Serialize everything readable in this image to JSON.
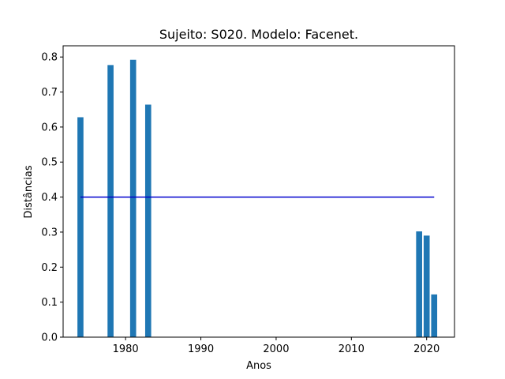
{
  "chart_data": {
    "type": "bar",
    "title": "Sujeito: S020. Modelo: Facenet.",
    "xlabel": "Anos",
    "ylabel": "Distâncias",
    "x": [
      1974,
      1978,
      1981,
      1983,
      2019,
      2020,
      2021
    ],
    "values": [
      0.628,
      0.777,
      0.792,
      0.664,
      0.302,
      0.29,
      0.122
    ],
    "bar_color": "#1f77b4",
    "threshold": {
      "value": 0.4,
      "x_range": [
        1974,
        2021
      ],
      "color": "#0000cd"
    },
    "xlim": [
      1971.7,
      2023.7
    ],
    "ylim": [
      0,
      0.832
    ],
    "xticks": [
      1980,
      1990,
      2000,
      2010,
      2020
    ],
    "yticks": [
      0.0,
      0.1,
      0.2,
      0.3,
      0.4,
      0.5,
      0.6,
      0.7,
      0.8
    ],
    "ytick_labels": [
      "0.0",
      "0.1",
      "0.2",
      "0.3",
      "0.4",
      "0.5",
      "0.6",
      "0.7",
      "0.8"
    ],
    "grid": false,
    "legend": "none"
  }
}
